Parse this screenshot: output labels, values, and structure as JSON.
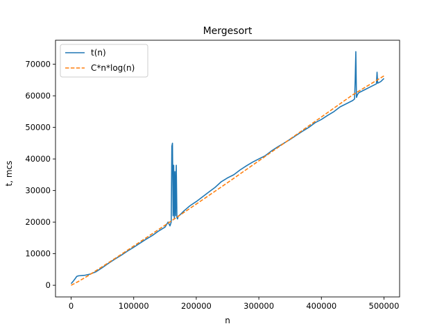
{
  "chart_data": {
    "type": "line",
    "title": "Mergesort",
    "xlabel": "n",
    "ylabel": "t, mcs",
    "xlim": [
      -25000,
      525000
    ],
    "ylim": [
      -3700,
      77600
    ],
    "xticks": [
      0,
      100000,
      200000,
      300000,
      400000,
      500000
    ],
    "yticks": [
      0,
      10000,
      20000,
      30000,
      40000,
      50000,
      60000,
      70000
    ],
    "legend_position": "top-left",
    "series": [
      {
        "name": "t(n)",
        "style": "solid",
        "color": "#1f77b4",
        "x": [
          0,
          3000,
          6000,
          9000,
          12000,
          20000,
          30000,
          40000,
          50000,
          60000,
          70000,
          80000,
          90000,
          100000,
          110000,
          120000,
          130000,
          140000,
          150000,
          155000,
          158000,
          160000,
          161000,
          162000,
          163000,
          164000,
          165000,
          166000,
          167000,
          168000,
          169000,
          170000,
          171000,
          172000,
          175000,
          180000,
          190000,
          200000,
          210000,
          220000,
          230000,
          240000,
          250000,
          260000,
          270000,
          280000,
          290000,
          300000,
          310000,
          320000,
          330000,
          340000,
          350000,
          360000,
          370000,
          380000,
          390000,
          400000,
          410000,
          420000,
          430000,
          440000,
          450000,
          453000,
          454000,
          455000,
          456000,
          457000,
          458000,
          460000,
          470000,
          480000,
          488000,
          489000,
          490000,
          495000,
          500000
        ],
        "y": [
          500,
          1200,
          2000,
          2800,
          3000,
          3100,
          3500,
          4300,
          5600,
          7000,
          8300,
          9500,
          10800,
          12000,
          13300,
          14600,
          15800,
          17200,
          18400,
          20000,
          18800,
          20000,
          44000,
          45000,
          22000,
          38000,
          21000,
          36000,
          22000,
          38000,
          21500,
          21000,
          21800,
          22000,
          22500,
          23500,
          25200,
          26500,
          28000,
          29500,
          31000,
          32800,
          34000,
          35000,
          36500,
          37800,
          39000,
          40000,
          41000,
          42500,
          43800,
          45000,
          46200,
          47500,
          48800,
          50000,
          51500,
          52500,
          53800,
          55000,
          56500,
          57500,
          58500,
          59000,
          65000,
          74000,
          59500,
          60000,
          60500,
          61000,
          62000,
          63000,
          63800,
          67500,
          64000,
          64500,
          65500
        ]
      },
      {
        "name": "C*n*log(n)",
        "style": "dashed",
        "color": "#ff7f0e",
        "x": [
          0,
          10000,
          25000,
          50000,
          75000,
          100000,
          150000,
          200000,
          250000,
          300000,
          350000,
          400000,
          450000,
          500000
        ],
        "y": [
          0,
          1020,
          2760,
          5900,
          9100,
          12400,
          19000,
          25700,
          32500,
          39400,
          46300,
          53300,
          60300,
          66300
        ]
      }
    ]
  }
}
